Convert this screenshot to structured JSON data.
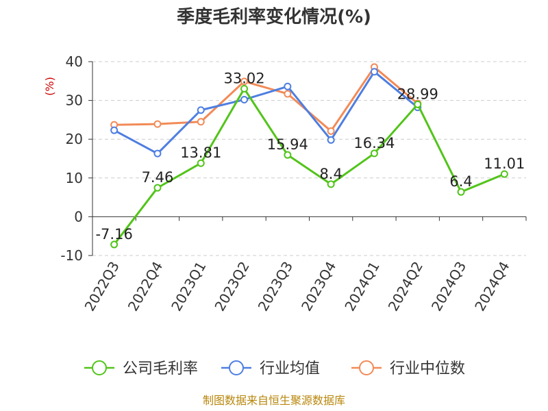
{
  "colors": {
    "company": "#52c41a",
    "industry_avg": "#4e7ee1",
    "industry_median": "#f28a57",
    "grid": "#cccccc",
    "axis": "#333333",
    "unit": "#cc0000",
    "source": "#b8860b"
  },
  "chart_data": {
    "type": "line",
    "title": "季度毛利率变化情况(%)",
    "ylabel": "(%)",
    "ylim": [
      -10,
      40
    ],
    "yticks": [
      -10,
      0,
      10,
      20,
      30,
      40
    ],
    "grid": true,
    "legend_position": "bottom",
    "categories": [
      "2022Q3",
      "2022Q4",
      "2023Q1",
      "2023Q2",
      "2023Q3",
      "2023Q4",
      "2024Q1",
      "2024Q2",
      "2024Q3",
      "2024Q4"
    ],
    "series": [
      {
        "name": "公司毛利率",
        "color": "#52c41a",
        "values": [
          -7.16,
          7.46,
          13.81,
          33.02,
          15.94,
          8.4,
          16.34,
          28.99,
          6.4,
          11.01
        ],
        "labels": [
          "-7.16",
          "7.46",
          "13.81",
          "33.02",
          "15.94",
          "8.4",
          "16.34",
          "28.99",
          "6.4",
          "11.01"
        ]
      },
      {
        "name": "行业均值",
        "color": "#4e7ee1",
        "values": [
          22.3,
          16.3,
          27.5,
          30.2,
          33.6,
          19.8,
          37.4,
          28.2,
          null,
          null
        ]
      },
      {
        "name": "行业中位数",
        "color": "#f28a57",
        "values": [
          23.7,
          23.9,
          24.5,
          34.9,
          31.7,
          22.1,
          38.6,
          29.2,
          null,
          null
        ]
      }
    ]
  },
  "footer": {
    "source": "制图数据来自恒生聚源数据库"
  }
}
